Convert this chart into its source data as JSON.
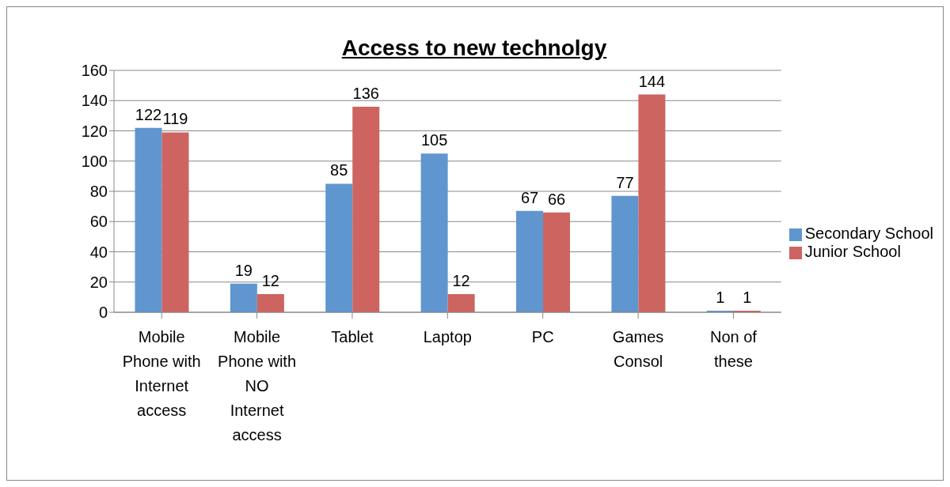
{
  "chart_data": {
    "type": "bar",
    "title": "Access to new technolgy",
    "categories": [
      "Mobile Phone with Internet access",
      "Mobile Phone with NO Internet access",
      "Tablet",
      "Laptop",
      "PC",
      "Games Consol",
      "Non of these"
    ],
    "series": [
      {
        "name": "Secondary School",
        "color": "#5f96cf",
        "values": [
          122,
          19,
          85,
          105,
          67,
          77,
          1
        ]
      },
      {
        "name": "Junior School",
        "color": "#cd6460",
        "values": [
          119,
          12,
          136,
          12,
          66,
          144,
          1
        ]
      }
    ],
    "ylim": [
      0,
      160
    ],
    "yticks": [
      0,
      20,
      40,
      60,
      80,
      100,
      120,
      140,
      160
    ],
    "grid": "y",
    "legend": "right",
    "data_labels": true
  }
}
